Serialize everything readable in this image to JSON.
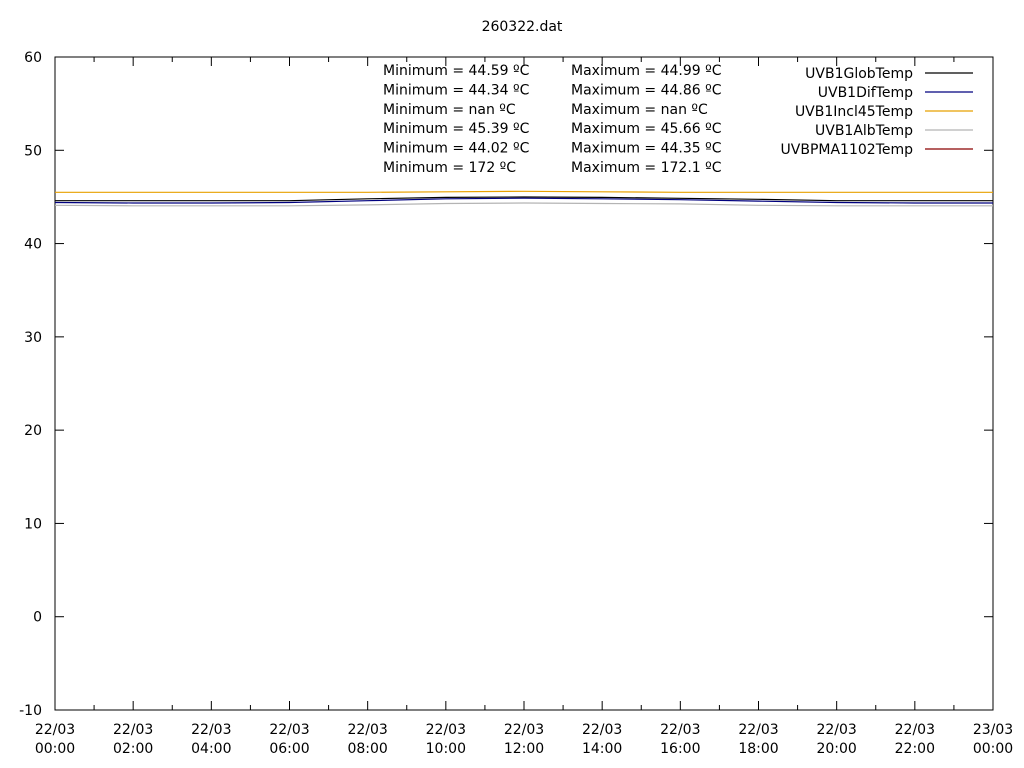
{
  "chart_data": {
    "type": "line",
    "title": "260322.dat",
    "xlabel": "",
    "ylabel": "",
    "ylim": [
      -10,
      60
    ],
    "yticks": [
      -10,
      0,
      10,
      20,
      30,
      40,
      50,
      60
    ],
    "xlim_hours": [
      0,
      24
    ],
    "xticks": [
      {
        "hour": 0,
        "date": "22/03",
        "time": "00:00"
      },
      {
        "hour": 2,
        "date": "22/03",
        "time": "02:00"
      },
      {
        "hour": 4,
        "date": "22/03",
        "time": "04:00"
      },
      {
        "hour": 6,
        "date": "22/03",
        "time": "06:00"
      },
      {
        "hour": 8,
        "date": "22/03",
        "time": "08:00"
      },
      {
        "hour": 10,
        "date": "22/03",
        "time": "10:00"
      },
      {
        "hour": 12,
        "date": "22/03",
        "time": "12:00"
      },
      {
        "hour": 14,
        "date": "22/03",
        "time": "14:00"
      },
      {
        "hour": 16,
        "date": "22/03",
        "time": "16:00"
      },
      {
        "hour": 18,
        "date": "22/03",
        "time": "18:00"
      },
      {
        "hour": 20,
        "date": "22/03",
        "time": "20:00"
      },
      {
        "hour": 22,
        "date": "22/03",
        "time": "22:00"
      },
      {
        "hour": 24,
        "date": "23/03",
        "time": "00:00"
      }
    ],
    "grid": false,
    "legend_position": "top-right",
    "series": [
      {
        "name": "UVB1GlobTemp",
        "color": "#000000",
        "x": [
          0,
          2,
          4,
          6,
          8,
          10,
          12,
          14,
          16,
          18,
          20,
          22,
          24
        ],
        "y": [
          44.6,
          44.6,
          44.6,
          44.6,
          44.8,
          44.95,
          44.99,
          44.95,
          44.85,
          44.75,
          44.6,
          44.6,
          44.6
        ]
      },
      {
        "name": "UVB1DifTemp",
        "color": "#00007f",
        "x": [
          0,
          2,
          4,
          6,
          8,
          10,
          12,
          14,
          16,
          18,
          20,
          22,
          24
        ],
        "y": [
          44.4,
          44.35,
          44.35,
          44.4,
          44.6,
          44.8,
          44.86,
          44.8,
          44.7,
          44.55,
          44.4,
          44.35,
          44.35
        ]
      },
      {
        "name": "UVB1Incl45Temp",
        "color": "#e8a000",
        "x": [
          0,
          2,
          4,
          6,
          8,
          10,
          12,
          14,
          16,
          18,
          20,
          22,
          24
        ],
        "y": [
          45.5,
          45.5,
          45.5,
          45.5,
          45.5,
          45.55,
          45.6,
          45.55,
          45.5,
          45.5,
          45.5,
          45.5,
          45.5
        ]
      },
      {
        "name": "UVB1AlbTemp",
        "color": "#b4b4b4",
        "x": [
          0,
          2,
          4,
          6,
          8,
          10,
          12,
          14,
          16,
          18,
          20,
          22,
          24
        ],
        "y": [
          44.1,
          44.05,
          44.05,
          44.05,
          44.15,
          44.3,
          44.35,
          44.3,
          44.25,
          44.1,
          44.05,
          44.05,
          44.05
        ]
      },
      {
        "name": "UVBPMA1102Temp",
        "color": "#8b0000",
        "x": [],
        "y": []
      }
    ],
    "stats": [
      {
        "min": "Minimum = 44.59 ºC",
        "max": "Maximum = 44.99 ºC"
      },
      {
        "min": "Minimum = 44.34 ºC",
        "max": "Maximum = 44.86 ºC"
      },
      {
        "min": "Minimum = nan ºC",
        "max": "Maximum = nan ºC"
      },
      {
        "min": "Minimum = 45.39 ºC",
        "max": "Maximum = 45.66 ºC"
      },
      {
        "min": "Minimum = 44.02 ºC",
        "max": "Maximum = 44.35 ºC"
      },
      {
        "min": "Minimum = 172 ºC",
        "max": "Maximum = 172.1 ºC"
      }
    ]
  }
}
